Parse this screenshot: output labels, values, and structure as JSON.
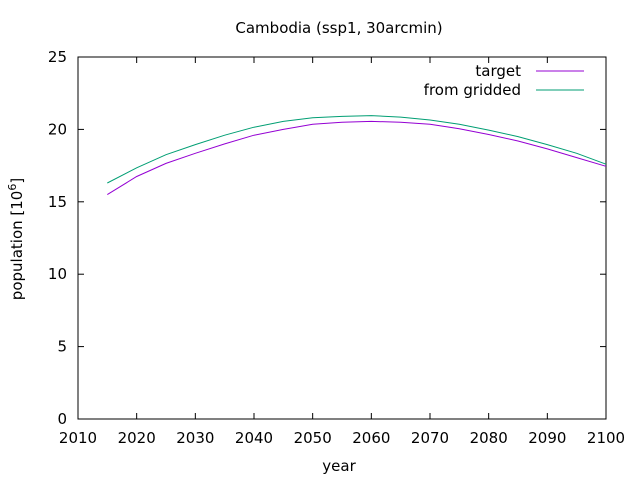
{
  "chart_data": {
    "type": "line",
    "title": "Cambodia (ssp1, 30arcmin)",
    "xlabel": "year",
    "ylabel_base": "population [10",
    "ylabel_exp": "6",
    "ylabel_close": "]",
    "xlim": [
      2010,
      2100
    ],
    "ylim": [
      0,
      25
    ],
    "xticks": [
      2010,
      2020,
      2030,
      2040,
      2050,
      2060,
      2070,
      2080,
      2090,
      2100
    ],
    "yticks": [
      0,
      5,
      10,
      15,
      20,
      25
    ],
    "grid": false,
    "legend_position": "top-right",
    "x": [
      2015,
      2020,
      2025,
      2030,
      2035,
      2040,
      2045,
      2050,
      2055,
      2060,
      2065,
      2070,
      2075,
      2080,
      2085,
      2090,
      2095,
      2100
    ],
    "series": [
      {
        "name": "target",
        "color": "#9400d3",
        "values": [
          15.5,
          16.75,
          17.65,
          18.35,
          19.0,
          19.6,
          20.0,
          20.35,
          20.5,
          20.55,
          20.5,
          20.35,
          20.05,
          19.65,
          19.2,
          18.65,
          18.05,
          17.45
        ]
      },
      {
        "name": "from gridded",
        "color": "#009e73",
        "values": [
          16.3,
          17.35,
          18.25,
          18.95,
          19.6,
          20.15,
          20.55,
          20.8,
          20.9,
          20.95,
          20.85,
          20.65,
          20.35,
          19.95,
          19.5,
          18.95,
          18.35,
          17.6
        ]
      }
    ]
  }
}
